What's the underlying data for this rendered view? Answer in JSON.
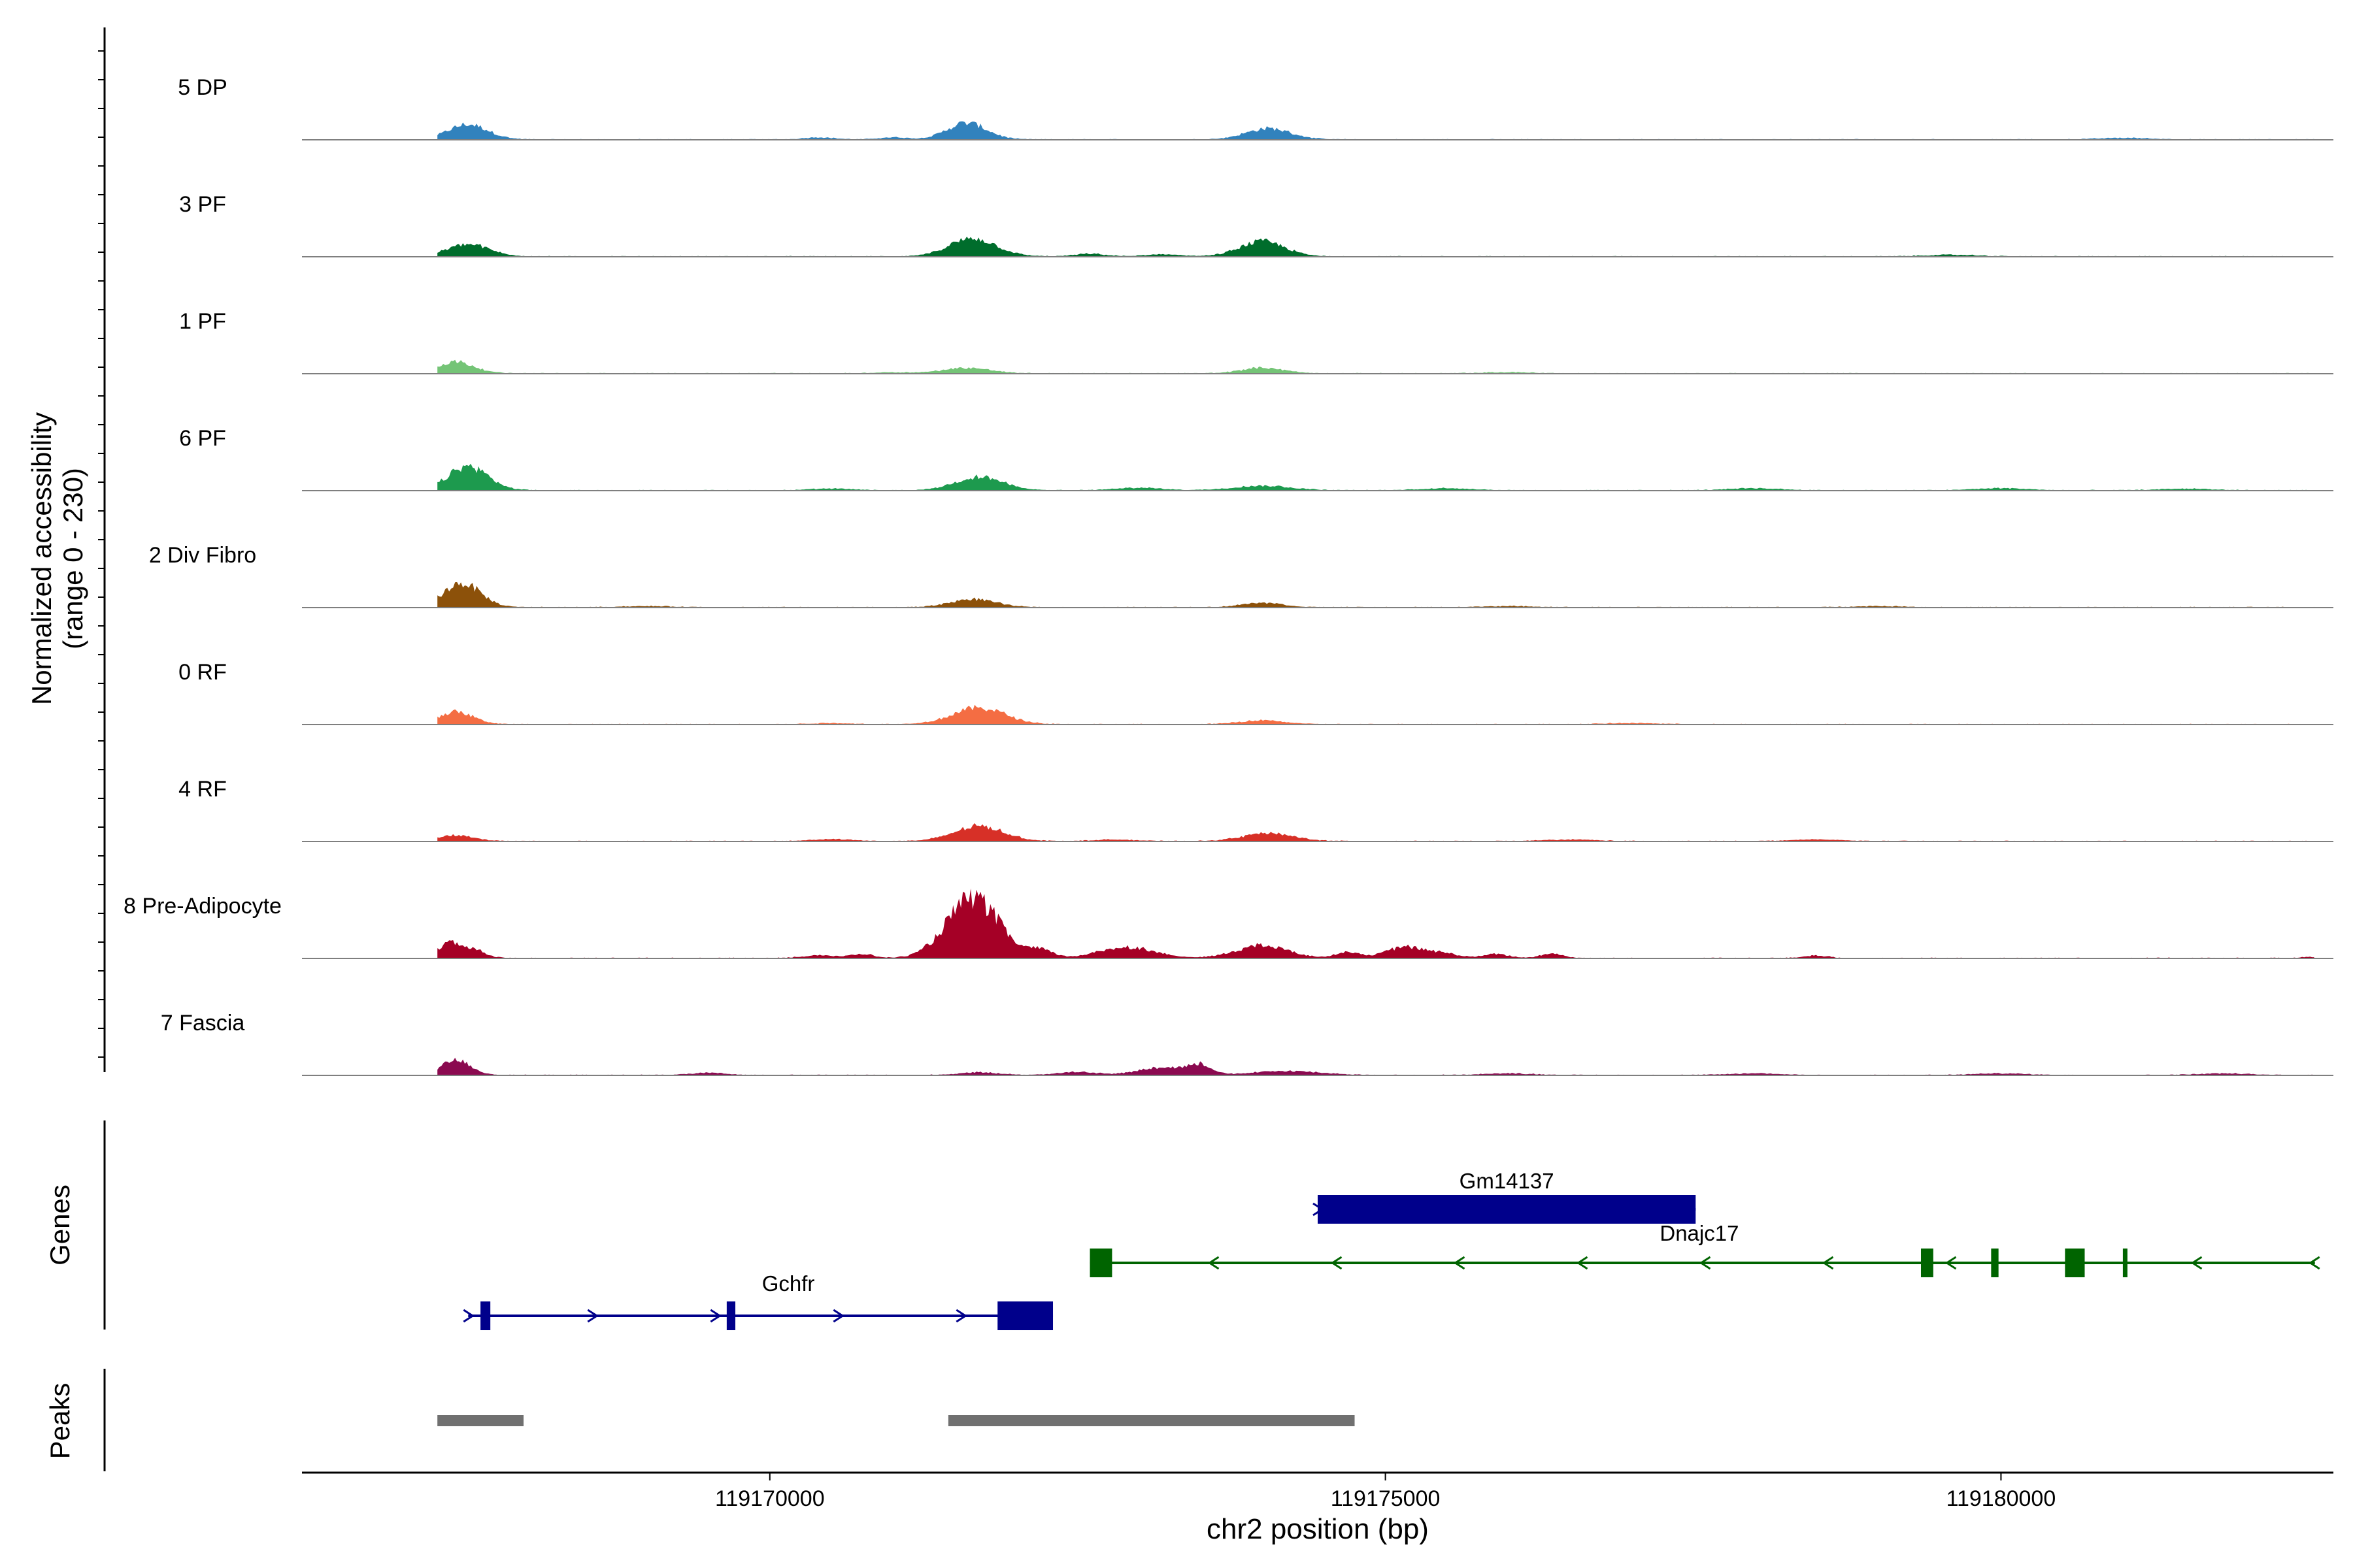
{
  "chart_data": {
    "type": "area",
    "region": "chr2",
    "ylabel_line1": "Normalized accessibility",
    "ylabel_line2": "(range 0 - 230)",
    "ylim": [
      0,
      230
    ],
    "xlabel": "chr2 position (bp)",
    "xlim": [
      119166200,
      119182700
    ],
    "xticks": [
      {
        "value": 119170000,
        "label": "119170000"
      },
      {
        "value": 119175000,
        "label": "119175000"
      },
      {
        "value": 119180000,
        "label": "119180000"
      }
    ],
    "track_start": 119167300,
    "track_end": 119182550,
    "tracks": [
      {
        "name": "5 DP",
        "color": "#3182bd",
        "peaks": [
          [
            119167550,
            30,
            160
          ],
          [
            119171600,
            33,
            160
          ],
          [
            119174050,
            22,
            180
          ],
          [
            119171000,
            4,
            110
          ],
          [
            119170400,
            4,
            120
          ],
          [
            119181000,
            3,
            200
          ]
        ]
      },
      {
        "name": "3 PF",
        "color": "#006d2c",
        "peaks": [
          [
            119167550,
            24,
            170
          ],
          [
            119171650,
            36,
            190
          ],
          [
            119174000,
            30,
            180
          ],
          [
            119172600,
            5,
            120
          ],
          [
            119173200,
            4,
            140
          ],
          [
            119179600,
            3,
            200
          ]
        ]
      },
      {
        "name": "1 PF",
        "color": "#74c476",
        "peaks": [
          [
            119167450,
            23,
            150
          ],
          [
            119171600,
            11,
            190
          ],
          [
            119174000,
            11,
            170
          ],
          [
            119171000,
            2,
            150
          ],
          [
            119176000,
            2,
            200
          ]
        ]
      },
      {
        "name": "6 PF",
        "color": "#1d9a4e",
        "peaks": [
          [
            119167550,
            48,
            160
          ],
          [
            119171700,
            27,
            190
          ],
          [
            119174000,
            9,
            230
          ],
          [
            119173000,
            5,
            180
          ],
          [
            119175500,
            4,
            200
          ],
          [
            119178000,
            4,
            200
          ],
          [
            119180000,
            4,
            200
          ],
          [
            119181500,
            3,
            200
          ],
          [
            119170500,
            3,
            180
          ]
        ]
      },
      {
        "name": "2 Div Fibro",
        "color": "#8c510a",
        "peaks": [
          [
            119167500,
            48,
            150
          ],
          [
            119171650,
            16,
            180
          ],
          [
            119174000,
            9,
            160
          ],
          [
            119169000,
            2,
            200
          ],
          [
            119176000,
            2,
            200
          ],
          [
            119179000,
            2,
            200
          ]
        ]
      },
      {
        "name": "0 RF",
        "color": "#f46d43",
        "peaks": [
          [
            119167450,
            25,
            140
          ],
          [
            119171700,
            33,
            210
          ],
          [
            119174000,
            8,
            170
          ],
          [
            119170500,
            2,
            160
          ],
          [
            119177000,
            2,
            200
          ]
        ]
      },
      {
        "name": "4 RF",
        "color": "#d73027",
        "peaks": [
          [
            119167450,
            12,
            140
          ],
          [
            119171700,
            30,
            200
          ],
          [
            119174050,
            16,
            200
          ],
          [
            119170500,
            4,
            160
          ],
          [
            119172800,
            3,
            160
          ],
          [
            119176500,
            3,
            200
          ],
          [
            119178500,
            3,
            200
          ]
        ]
      },
      {
        "name": "8 Pre-Adipocyte",
        "color": "#a50026",
        "peaks": [
          [
            119167400,
            30,
            90
          ],
          [
            119167600,
            16,
            90
          ],
          [
            119171650,
            120,
            210
          ],
          [
            119172200,
            15,
            100
          ],
          [
            119172900,
            22,
            220
          ],
          [
            119174000,
            25,
            210
          ],
          [
            119174700,
            12,
            100
          ],
          [
            119175150,
            22,
            140
          ],
          [
            119175450,
            10,
            130
          ],
          [
            119175900,
            8,
            100
          ],
          [
            119176350,
            9,
            90
          ],
          [
            119170400,
            6,
            120
          ],
          [
            119170750,
            8,
            90
          ],
          [
            119178500,
            5,
            90
          ],
          [
            119182500,
            2,
            60
          ]
        ]
      },
      {
        "name": "7 Fascia",
        "color": "#8b0a50",
        "peaks": [
          [
            119167450,
            30,
            120
          ],
          [
            119173200,
            16,
            190
          ],
          [
            119173500,
            18,
            90
          ],
          [
            119174200,
            8,
            260
          ],
          [
            119171700,
            5,
            160
          ],
          [
            119172500,
            6,
            160
          ],
          [
            119169500,
            4,
            140
          ],
          [
            119176000,
            3,
            200
          ],
          [
            119178000,
            3,
            200
          ],
          [
            119180000,
            3,
            200
          ],
          [
            119181800,
            3,
            200
          ]
        ]
      }
    ],
    "genes_label": "Genes",
    "genes": [
      {
        "name": "Gm14137",
        "strand": "+",
        "color": "#00008b",
        "start": 119174450,
        "end": 119177520,
        "exons": [
          [
            119174450,
            119177520
          ]
        ],
        "row": 0
      },
      {
        "name": "Dnajc17",
        "strand": "-",
        "color": "#006400",
        "start": 119172600,
        "end": 119182550,
        "exons": [
          [
            119172600,
            119172780
          ],
          [
            119179350,
            119179450
          ],
          [
            119179920,
            119179980
          ],
          [
            119180520,
            119180680
          ],
          [
            119180990,
            119181020
          ]
        ],
        "row": 1
      },
      {
        "name": "Gchfr",
        "strand": "+",
        "color": "#00008b",
        "start": 119167550,
        "end": 119172300,
        "exons": [
          [
            119167650,
            119167730
          ],
          [
            119169650,
            119169720
          ],
          [
            119171850,
            119172300
          ]
        ],
        "row": 2
      }
    ],
    "peaks_label": "Peaks",
    "peak_regions": [
      [
        119167300,
        119168000
      ],
      [
        119171450,
        119174750
      ]
    ],
    "peak_color": "#707070"
  }
}
